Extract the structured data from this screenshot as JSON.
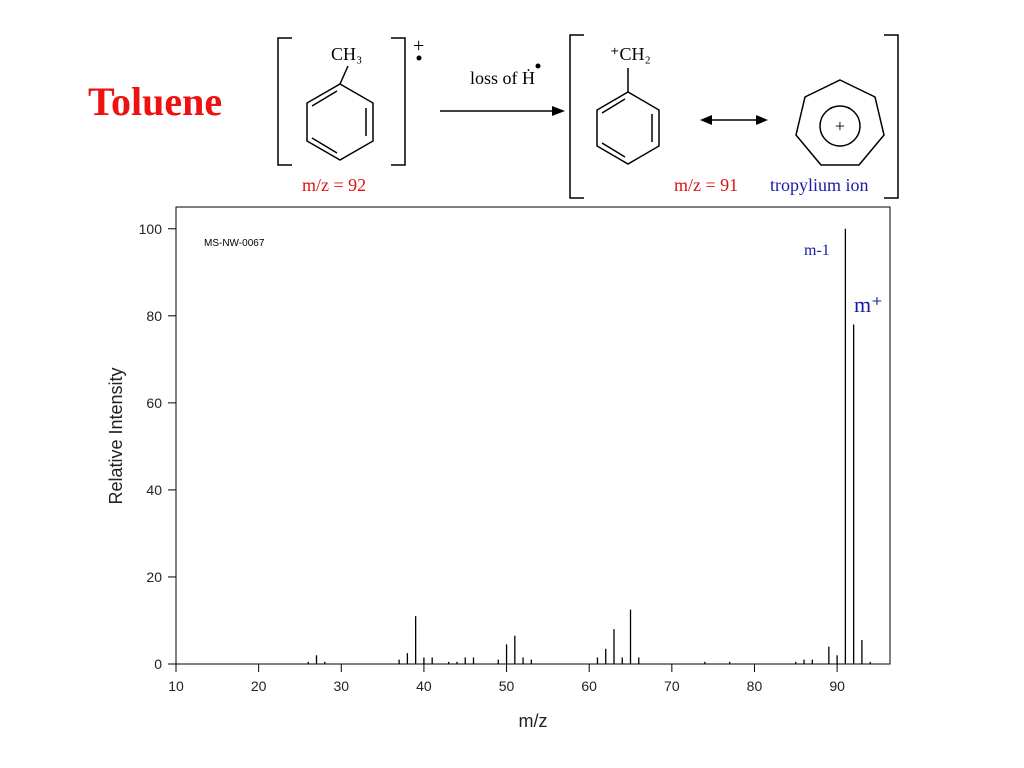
{
  "title": "Toluene",
  "scheme": {
    "reactant_group": "CH₃",
    "reactant_charge": "+",
    "reactant_mz": "m/z = 92",
    "arrow_label": "loss of Ḣ",
    "product_group": "⁺CH₂",
    "product_mz": "m/z = 91",
    "tropylium_charge": "+",
    "tropylium_label": "tropylium ion"
  },
  "chart_data": {
    "type": "bar",
    "color": "#000000",
    "x_label": "m/z",
    "y_label": "Relative Intensity",
    "code": "MS-NW-0067",
    "annotations": [
      {
        "text": "m-1",
        "color": "#1a1aa6"
      },
      {
        "text": "m⁺",
        "color": "#1a1aa6"
      }
    ],
    "x": [
      26,
      27,
      28,
      37,
      38,
      39,
      40,
      41,
      43,
      44,
      45,
      46,
      49,
      50,
      51,
      52,
      53,
      61,
      62,
      63,
      64,
      65,
      66,
      74,
      77,
      85,
      86,
      87,
      89,
      90,
      91,
      92,
      93,
      94
    ],
    "values": [
      0.5,
      2,
      0.5,
      1,
      2.5,
      11,
      1.5,
      1.5,
      0.5,
      0.5,
      1.5,
      1.5,
      1,
      4.5,
      6.5,
      1.5,
      1,
      1.5,
      3.5,
      8,
      1.5,
      12.5,
      1.5,
      0.5,
      0.5,
      0.5,
      1,
      1,
      4,
      2,
      100,
      78,
      5.5,
      0.5
    ],
    "xlim": [
      10,
      96.4
    ],
    "ylim": [
      0,
      105
    ],
    "xticks": [
      10,
      20,
      30,
      40,
      50,
      60,
      70,
      80,
      90
    ],
    "yticks": [
      0,
      20,
      40,
      60,
      80,
      100
    ]
  }
}
